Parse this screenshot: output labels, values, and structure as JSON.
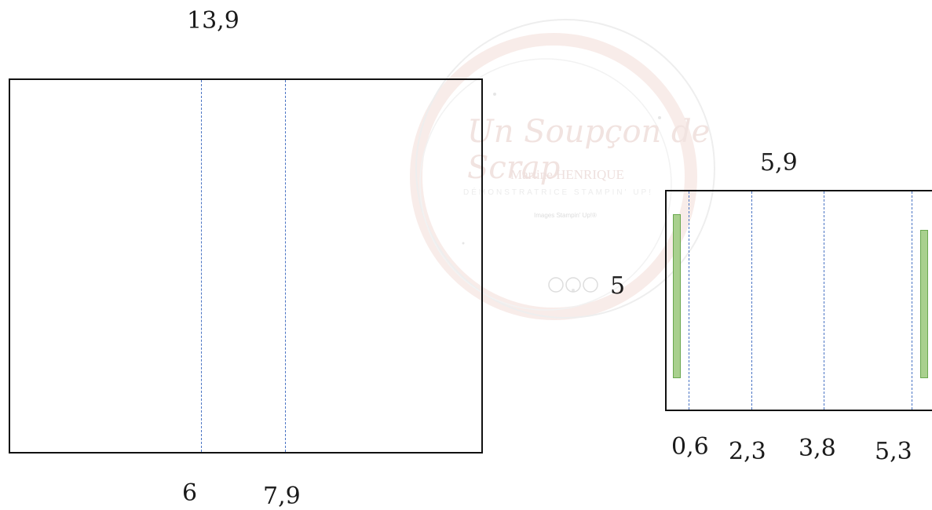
{
  "watermark": {
    "script_text": "Un Soupçon de Scrap",
    "name_text": "Martine HENRIQUE",
    "subtitle_text": "DÉMONSTRATRICE STAMPIN' UP!",
    "small_text": "Images Stampin' Up!®",
    "ring_color": "#e8c6c0"
  },
  "left_card": {
    "width_label": "13,9",
    "fold_labels": [
      "6",
      "7,9"
    ]
  },
  "right_card": {
    "width_label": "5,9",
    "height_label": "5",
    "fold_labels": [
      "0,6",
      "2,3",
      "3,8",
      "5,3"
    ],
    "strip_color": "#a9d08e"
  },
  "colors": {
    "outline": "#111111",
    "fold_line": "#4a74c4"
  }
}
